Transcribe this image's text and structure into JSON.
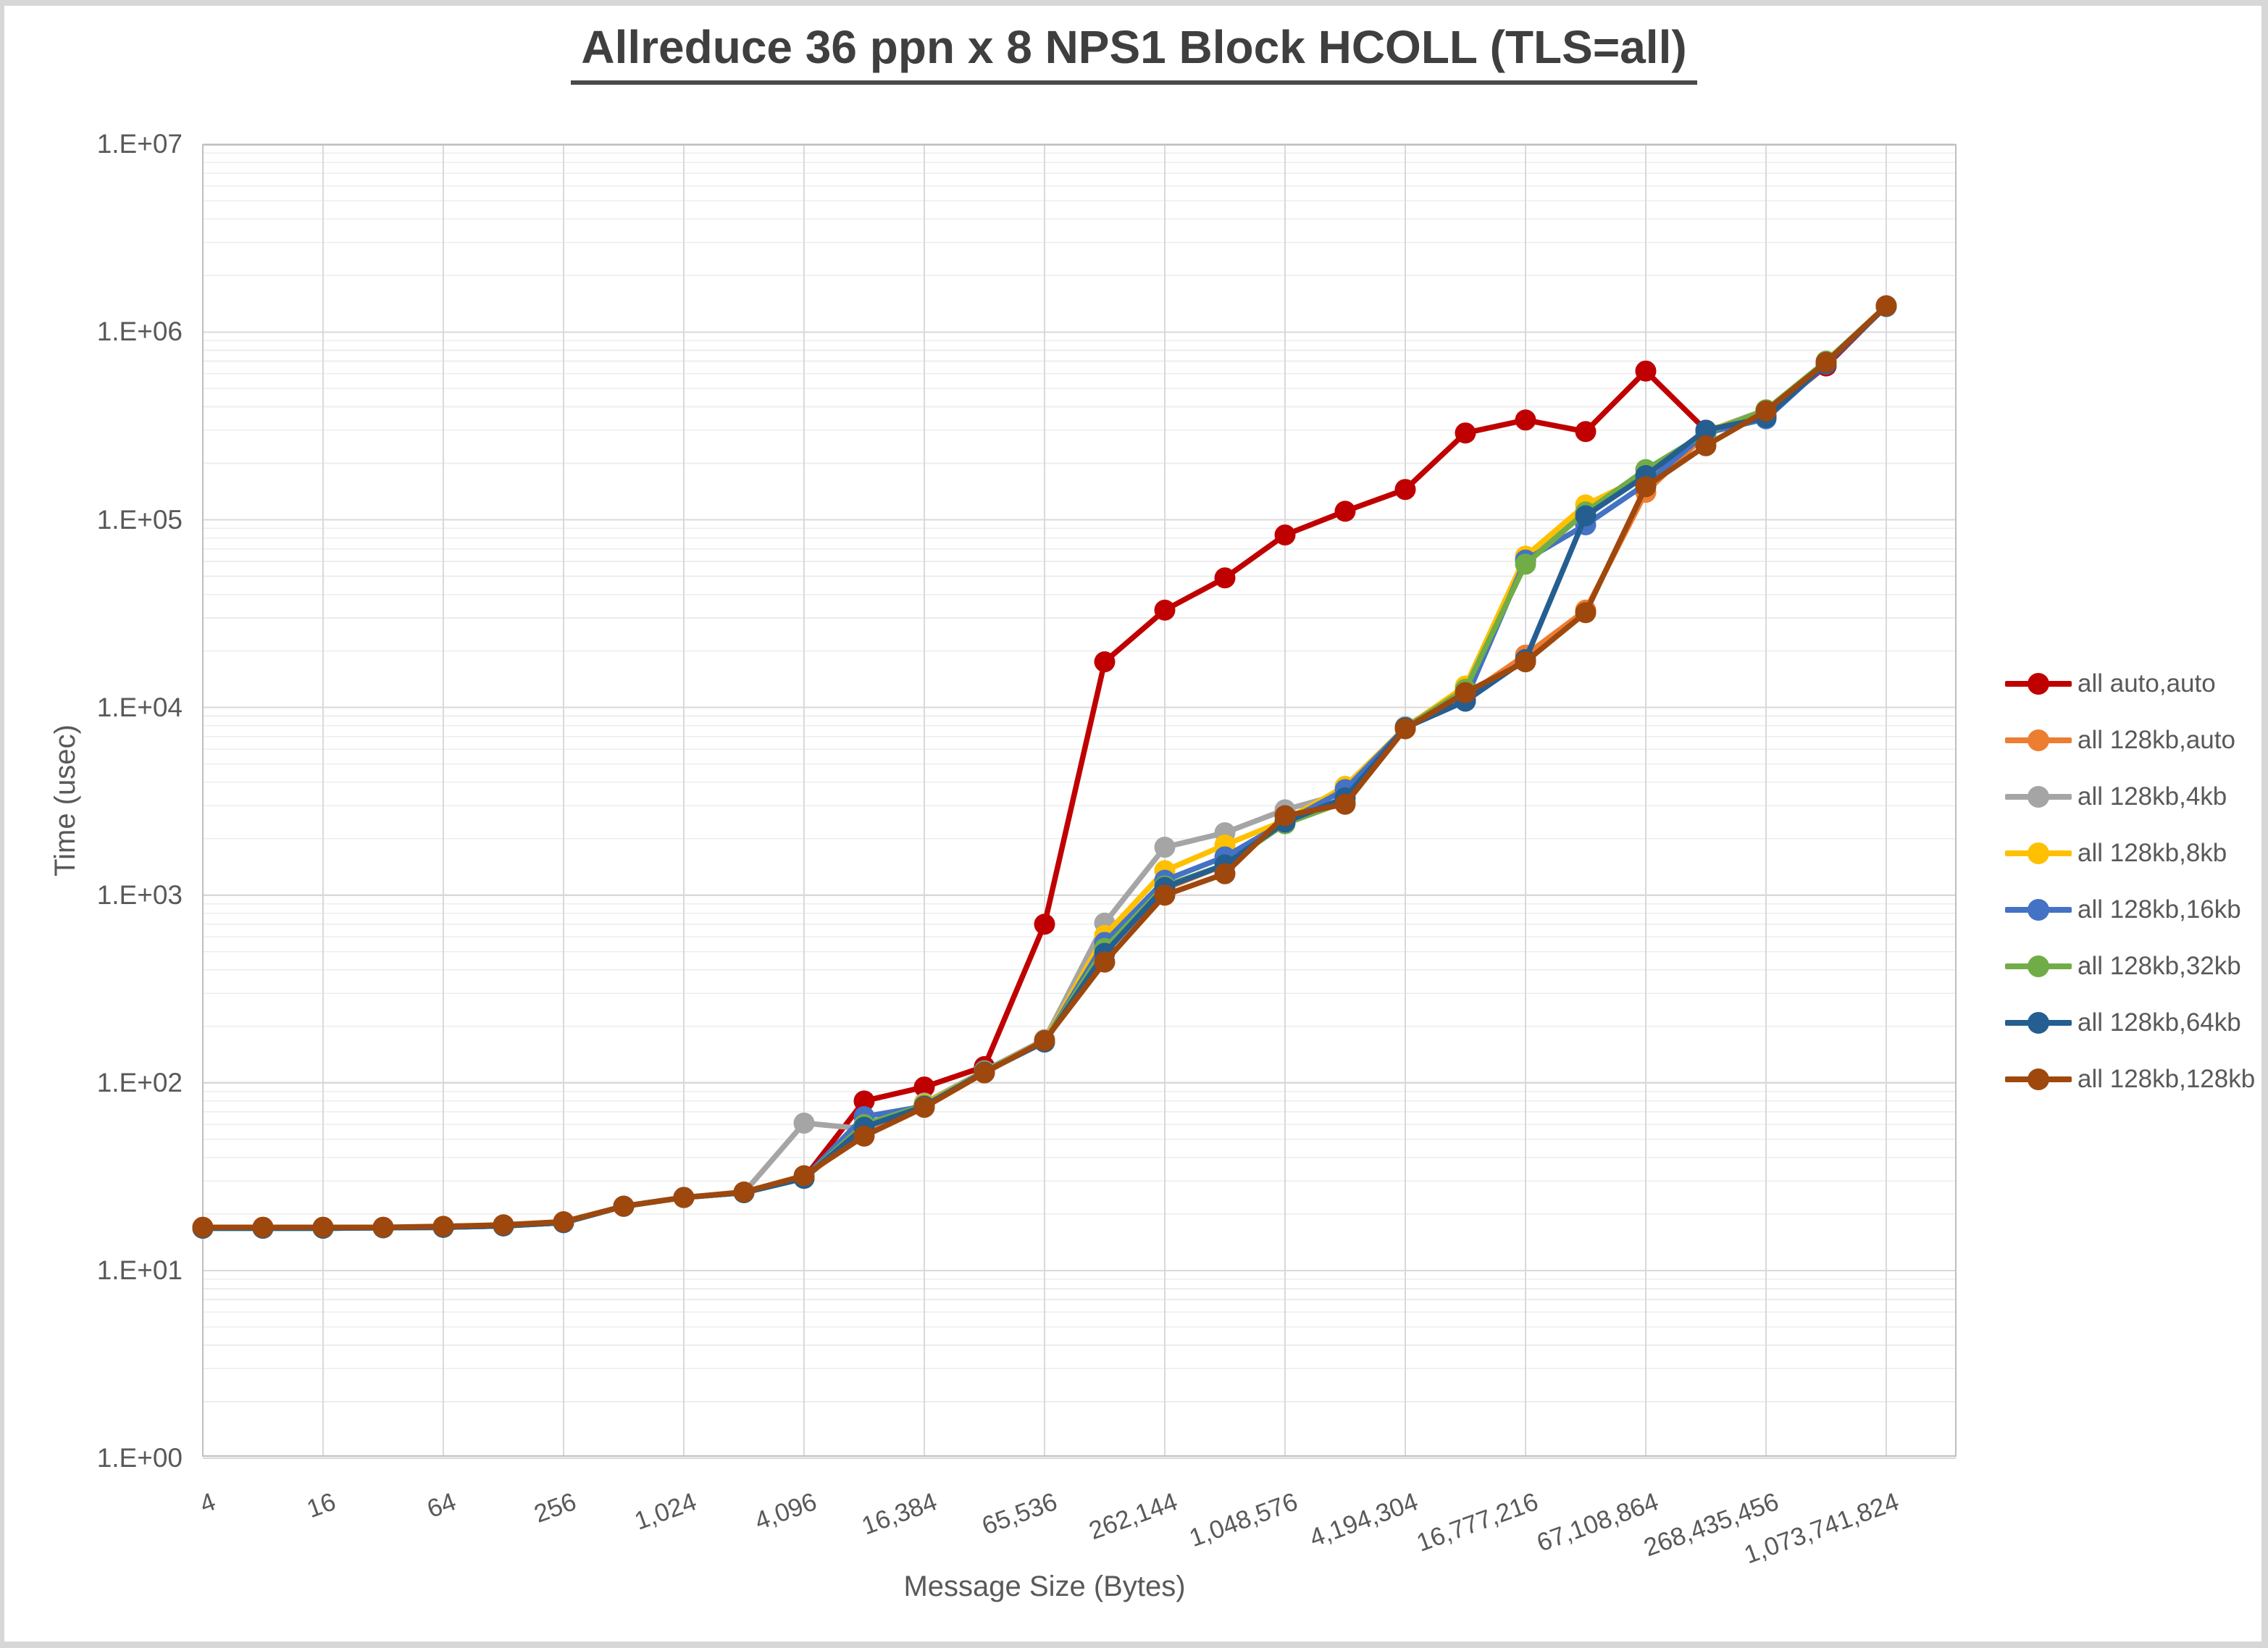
{
  "title": {
    "text": "Allreduce 36 ppn x 8 NPS1 Block HCOLL (TLS=all)"
  },
  "chart_data": {
    "type": "line",
    "title": "Allreduce 36 ppn x 8 NPS1 Block HCOLL (TLS=all)",
    "xlabel": "Message Size (Bytes)",
    "ylabel": "Time (usec)",
    "x_scale": "log2",
    "y_scale": "log10",
    "ylim": [
      1,
      10000000
    ],
    "y_tick_labels": [
      "1.E+00",
      "1.E+01",
      "1.E+02",
      "1.E+03",
      "1.E+04",
      "1.E+05",
      "1.E+06",
      "1.E+07"
    ],
    "x_tick_values": [
      4,
      16,
      64,
      256,
      1024,
      4096,
      16384,
      65536,
      262144,
      1048576,
      4194304,
      16777216,
      67108864,
      268435456,
      1073741824
    ],
    "x_tick_labels": [
      "4",
      "16",
      "64",
      "256",
      "1,024",
      "4,096",
      "16,384",
      "65,536",
      "262,144",
      "1,048,576",
      "4,194,304",
      "16,777,216",
      "67,108,864",
      "268,435,456",
      "1,073,741,824"
    ],
    "grid": {
      "major_color": "#d9d9d9",
      "minor_color": "#ededed",
      "border_color": "#bfbfbf"
    },
    "legend_position": "right",
    "x": [
      4,
      8,
      16,
      32,
      64,
      128,
      256,
      512,
      1024,
      2048,
      4096,
      8192,
      16384,
      32768,
      65536,
      131072,
      262144,
      524288,
      1048576,
      2097152,
      4194304,
      8388608,
      16777216,
      33554432,
      67108864,
      134217728,
      268435456,
      536870912,
      1073741824
    ],
    "series": [
      {
        "name": "all auto,auto",
        "color": "#c00000",
        "values": [
          17,
          17,
          17,
          17,
          17,
          17.5,
          18,
          22,
          24.5,
          26,
          31,
          80,
          95,
          122,
          700,
          17500,
          33000,
          49000,
          83000,
          111000,
          145000,
          290000,
          340000,
          295000,
          620000,
          300000,
          360000,
          660000,
          1380000
        ]
      },
      {
        "name": "all 128kb,auto",
        "color": "#ed7d31",
        "values": [
          16.8,
          16.8,
          16.8,
          16.9,
          17,
          17.3,
          18,
          22,
          24.5,
          26,
          31,
          56,
          77,
          116,
          168,
          500,
          1080,
          1450,
          2450,
          3300,
          7700,
          11500,
          19000,
          33000,
          140000,
          285000,
          370000,
          680000,
          1370000
        ]
      },
      {
        "name": "all 128kb,4kb",
        "color": "#a5a5a5",
        "values": [
          16.8,
          16.8,
          16.8,
          16.9,
          17,
          17.3,
          18,
          22,
          24.5,
          26,
          61,
          57,
          78,
          116,
          170,
          710,
          1800,
          2150,
          2850,
          3500,
          7900,
          12500,
          62000,
          110000,
          170000,
          295000,
          385000,
          690000,
          1380000
        ]
      },
      {
        "name": "all 128kb,8kb",
        "color": "#ffc000",
        "values": [
          16.8,
          16.8,
          16.8,
          16.9,
          17,
          17.3,
          18,
          22,
          24.5,
          26,
          31,
          58,
          77,
          115,
          167,
          610,
          1350,
          1850,
          2500,
          3800,
          7800,
          13000,
          64000,
          120000,
          172000,
          295000,
          380000,
          690000,
          1375000
        ]
      },
      {
        "name": "all 128kb,16kb",
        "color": "#4472c4",
        "values": [
          16.8,
          16.8,
          16.8,
          16.9,
          17,
          17.3,
          18,
          22,
          24.5,
          26,
          31,
          66,
          75,
          115,
          165,
          560,
          1200,
          1600,
          2450,
          3650,
          7800,
          11000,
          61000,
          94000,
          155000,
          290000,
          345000,
          675000,
          1370000
        ]
      },
      {
        "name": "all 128kb,32kb",
        "color": "#70ad47",
        "values": [
          16.8,
          16.8,
          16.8,
          16.9,
          17,
          17.3,
          18,
          22,
          24.5,
          26,
          31,
          60,
          76,
          115,
          166,
          520,
          1120,
          1450,
          2400,
          3150,
          7800,
          12500,
          58000,
          110000,
          185000,
          290000,
          385000,
          700000,
          1380000
        ]
      },
      {
        "name": "all 128kb,64kb",
        "color": "#255e91",
        "values": [
          16.8,
          16.8,
          16.8,
          16.9,
          17,
          17.3,
          18,
          22,
          24.5,
          26,
          31,
          58,
          75,
          114,
          165,
          490,
          1100,
          1450,
          2450,
          3300,
          7800,
          10800,
          18000,
          105000,
          172000,
          300000,
          350000,
          680000,
          1370000
        ]
      },
      {
        "name": "all 128kb,128kb",
        "color": "#9e480e",
        "values": [
          17,
          17,
          17,
          17,
          17.2,
          17.5,
          18.2,
          22,
          24.5,
          26.2,
          32,
          52,
          74,
          113,
          168,
          440,
          1000,
          1300,
          2650,
          3050,
          7700,
          12000,
          17500,
          32000,
          150000,
          248000,
          380000,
          690000,
          1380000
        ]
      }
    ]
  }
}
